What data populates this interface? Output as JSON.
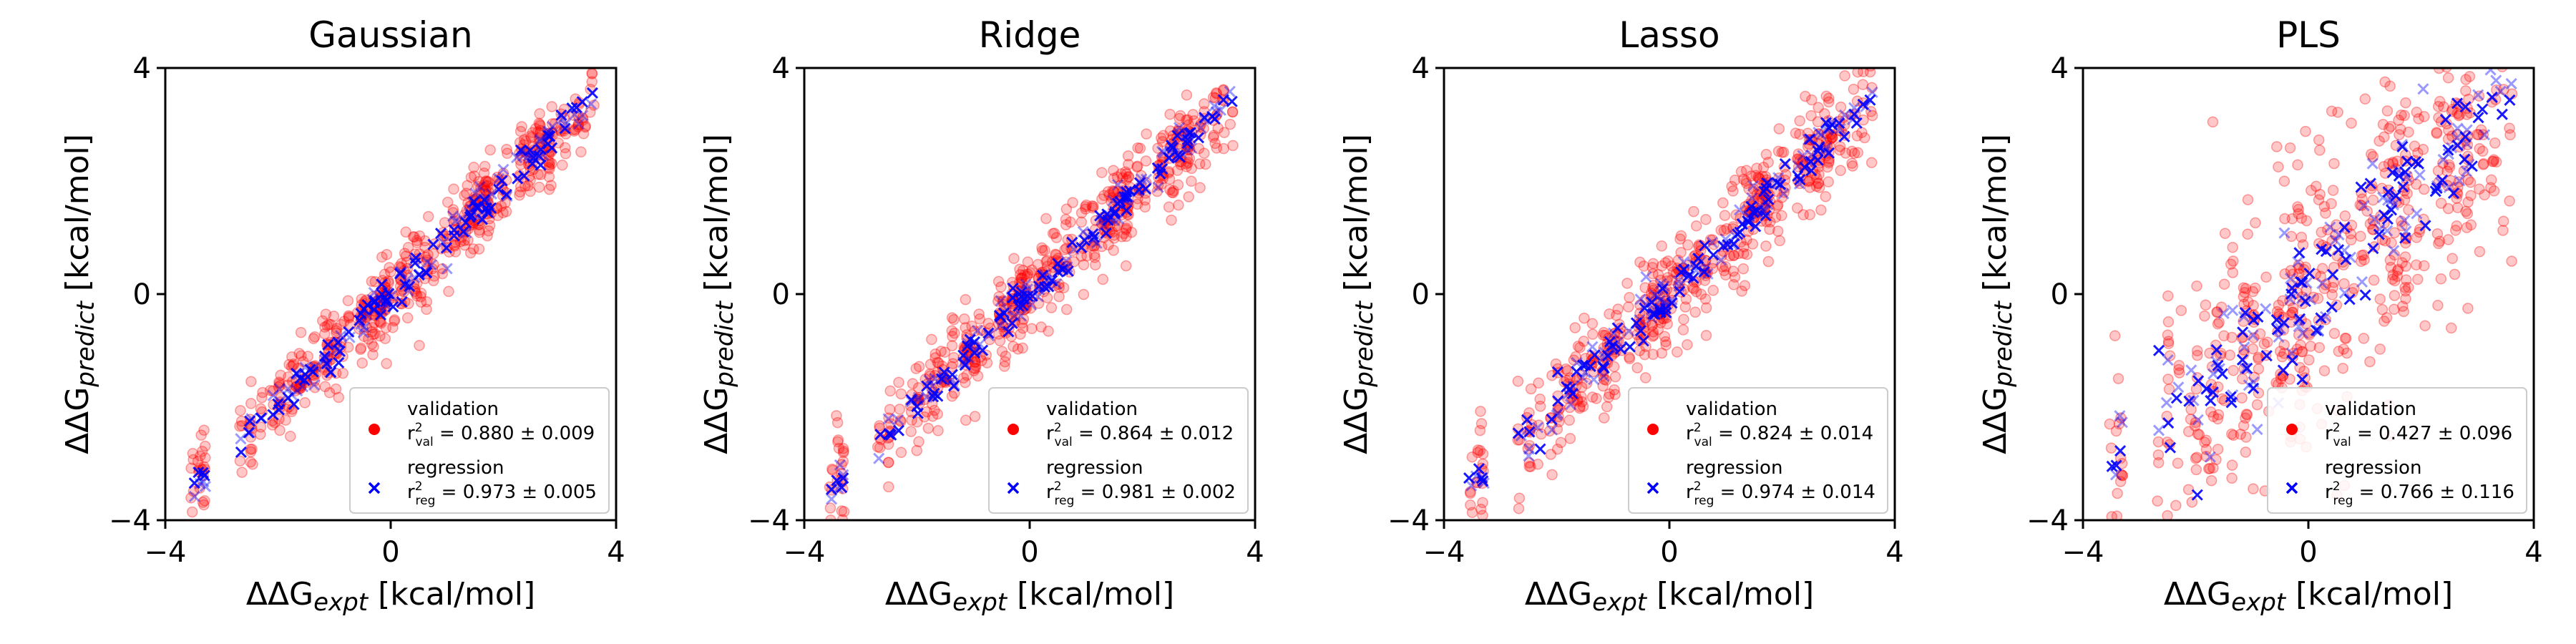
{
  "figure": {
    "x_label_prefix": "ΔΔG",
    "x_label_sub": "expt",
    "x_label_unit": "[kcal/mol]",
    "y_label_prefix": "ΔΔG",
    "y_label_sub": "predict",
    "y_label_unit": "[kcal/mol]"
  },
  "colors": {
    "validation": "#ff0000",
    "regression": "#0000ff"
  },
  "chart_data": [
    {
      "type": "scatter",
      "title": "Gaussian",
      "xlim": [
        -4,
        4
      ],
      "ylim": [
        -4,
        4
      ],
      "xticks": [
        "−4",
        "0",
        "4"
      ],
      "yticks": [
        "−4",
        "0",
        "4"
      ],
      "legend_position": "lower-right",
      "spread": {
        "validation": 0.35,
        "regression": 0.18
      },
      "series": [
        {
          "name": "validation",
          "marker": "circle",
          "r_label": "r",
          "r_sub": "val",
          "stat_text": " = 0.880 ± 0.009"
        },
        {
          "name": "regression",
          "marker": "x",
          "r_label": "r",
          "r_sub": "reg",
          "stat_text": " = 0.973 ± 0.005"
        }
      ]
    },
    {
      "type": "scatter",
      "title": "Ridge",
      "xlim": [
        -4,
        4
      ],
      "ylim": [
        -4,
        4
      ],
      "xticks": [
        "−4",
        "0",
        "4"
      ],
      "yticks": [
        "−4",
        "0",
        "4"
      ],
      "legend_position": "lower-right",
      "spread": {
        "validation": 0.4,
        "regression": 0.15
      },
      "series": [
        {
          "name": "validation",
          "marker": "circle",
          "r_label": "r",
          "r_sub": "val",
          "stat_text": " = 0.864 ± 0.012"
        },
        {
          "name": "regression",
          "marker": "x",
          "r_label": "r",
          "r_sub": "reg",
          "stat_text": " = 0.981 ± 0.002"
        }
      ]
    },
    {
      "type": "scatter",
      "title": "Lasso",
      "xlim": [
        -4,
        4
      ],
      "ylim": [
        -4,
        4
      ],
      "xticks": [
        "−4",
        "0",
        "4"
      ],
      "yticks": [
        "−4",
        "0",
        "4"
      ],
      "legend_position": "lower-right",
      "spread": {
        "validation": 0.5,
        "regression": 0.2
      },
      "series": [
        {
          "name": "validation",
          "marker": "circle",
          "r_label": "r",
          "r_sub": "val",
          "stat_text": " = 0.824 ± 0.014"
        },
        {
          "name": "regression",
          "marker": "x",
          "r_label": "r",
          "r_sub": "reg",
          "stat_text": " = 0.974 ± 0.014"
        }
      ]
    },
    {
      "type": "scatter",
      "title": "PLS",
      "xlim": [
        -4,
        4
      ],
      "ylim": [
        -4,
        4
      ],
      "xticks": [
        "−4",
        "0",
        "4"
      ],
      "yticks": [
        "−4",
        "0",
        "4"
      ],
      "legend_position": "lower-right",
      "spread": {
        "validation": 1.3,
        "regression": 0.6
      },
      "series": [
        {
          "name": "validation",
          "marker": "circle",
          "r_label": "r",
          "r_sub": "val",
          "stat_text": " = 0.427 ± 0.096"
        },
        {
          "name": "regression",
          "marker": "x",
          "r_label": "r",
          "r_sub": "reg",
          "stat_text": " = 0.766 ± 0.116"
        }
      ]
    }
  ]
}
